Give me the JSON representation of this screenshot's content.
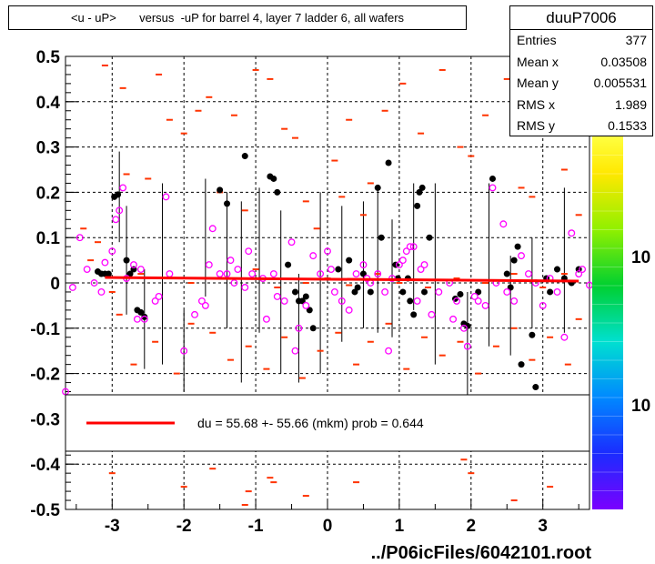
{
  "title": "<u - uP>       versus  -uP for barrel 4, layer 7 ladder 6, all wafers",
  "stats": {
    "name": "duuP7006",
    "rows": [
      {
        "label": "Entries",
        "value": "377"
      },
      {
        "label": "Mean x",
        "value": "0.03508"
      },
      {
        "label": "Mean y",
        "value": "0.005531"
      },
      {
        "label": "RMS x",
        "value": "1.989"
      },
      {
        "label": "RMS y",
        "value": "0.1533"
      }
    ]
  },
  "legend": {
    "text": "du =   55.68 +- 55.66 (mkm) prob = 0.644",
    "line_color": "#ff0000"
  },
  "footer": "../P06icFiles/6042101.root",
  "colorbar_labels": [
    "10",
    "10"
  ],
  "chart_data": {
    "type": "scatter",
    "xlim": [
      -3.65,
      3.65
    ],
    "ylim": [
      -0.5,
      0.5
    ],
    "x_ticks": [
      -3,
      -2,
      -1,
      0,
      1,
      2,
      3
    ],
    "y_ticks": [
      0.5,
      0.4,
      0.3,
      0.2,
      0.1,
      0,
      -0.1,
      -0.2,
      -0.3,
      -0.4,
      -0.5
    ],
    "grid": true,
    "fit_line": {
      "x": [
        -3.1,
        3.5
      ],
      "y": [
        0.012,
        0.004
      ],
      "color": "#ff0000"
    },
    "black_points": [
      [
        -3.2,
        0.025
      ],
      [
        -3.15,
        0.02
      ],
      [
        -3.1,
        0.02
      ],
      [
        -3.05,
        0.02
      ],
      [
        -2.97,
        0.19
      ],
      [
        -2.92,
        0.195
      ],
      [
        -2.8,
        0.05
      ],
      [
        -2.75,
        0.02
      ],
      [
        -2.7,
        0.03
      ],
      [
        -2.65,
        -0.06
      ],
      [
        -2.6,
        -0.065
      ],
      [
        -2.55,
        -0.075
      ],
      [
        -1.5,
        0.205
      ],
      [
        -1.4,
        0.175
      ],
      [
        -1.15,
        0.28
      ],
      [
        -0.8,
        0.235
      ],
      [
        -0.75,
        0.23
      ],
      [
        -0.7,
        0.2
      ],
      [
        -0.55,
        0.04
      ],
      [
        -0.45,
        -0.02
      ],
      [
        -0.4,
        -0.04
      ],
      [
        -0.35,
        -0.04
      ],
      [
        -0.3,
        -0.03
      ],
      [
        -0.25,
        -0.06
      ],
      [
        -0.2,
        -0.1
      ],
      [
        0.15,
        0.03
      ],
      [
        0.3,
        0.05
      ],
      [
        0.38,
        -0.02
      ],
      [
        0.42,
        -0.01
      ],
      [
        0.5,
        0.02
      ],
      [
        0.6,
        -0.02
      ],
      [
        0.7,
        0.21
      ],
      [
        0.75,
        0.1
      ],
      [
        0.85,
        0.265
      ],
      [
        0.95,
        0.04
      ],
      [
        0.98,
        0.01
      ],
      [
        1.05,
        -0.02
      ],
      [
        1.12,
        0.01
      ],
      [
        1.15,
        -0.04
      ],
      [
        1.2,
        -0.07
      ],
      [
        1.28,
        0.2
      ],
      [
        1.32,
        0.21
      ],
      [
        1.25,
        0.17
      ],
      [
        1.35,
        -0.02
      ],
      [
        1.42,
        0.1
      ],
      [
        1.78,
        -0.035
      ],
      [
        1.85,
        -0.025
      ],
      [
        1.9,
        -0.09
      ],
      [
        1.95,
        -0.095
      ],
      [
        2.1,
        -0.02
      ],
      [
        2.3,
        0.23
      ],
      [
        2.5,
        0.02
      ],
      [
        2.55,
        -0.01
      ],
      [
        2.6,
        0.05
      ],
      [
        2.65,
        0.08
      ],
      [
        2.7,
        -0.18
      ],
      [
        2.85,
        -0.115
      ],
      [
        2.9,
        -0.23
      ],
      [
        3.05,
        0.01
      ],
      [
        3.1,
        -0.02
      ],
      [
        3.2,
        0.03
      ],
      [
        3.3,
        0.01
      ],
      [
        3.4,
        0.0
      ],
      [
        3.5,
        0.03
      ]
    ],
    "magenta_points": [
      [
        -3.65,
        -0.24
      ],
      [
        -3.55,
        -0.01
      ],
      [
        -3.45,
        0.1
      ],
      [
        -3.35,
        0.03
      ],
      [
        -3.25,
        0.0
      ],
      [
        -3.15,
        -0.02
      ],
      [
        -3.1,
        0.045
      ],
      [
        -3.0,
        0.07
      ],
      [
        -2.95,
        0.14
      ],
      [
        -2.9,
        0.16
      ],
      [
        -2.85,
        0.21
      ],
      [
        -2.8,
        0.01
      ],
      [
        -2.7,
        0.04
      ],
      [
        -2.65,
        -0.08
      ],
      [
        -2.6,
        0.03
      ],
      [
        -2.55,
        -0.08
      ],
      [
        -2.4,
        -0.04
      ],
      [
        -2.35,
        -0.03
      ],
      [
        -2.25,
        0.19
      ],
      [
        -2.2,
        0.02
      ],
      [
        -2.0,
        -0.15
      ],
      [
        -1.85,
        -0.07
      ],
      [
        -1.75,
        -0.04
      ],
      [
        -1.7,
        -0.05
      ],
      [
        -1.65,
        0.04
      ],
      [
        -1.6,
        0.12
      ],
      [
        -1.5,
        0.02
      ],
      [
        -1.4,
        0.02
      ],
      [
        -1.35,
        0.05
      ],
      [
        -1.3,
        0.0
      ],
      [
        -1.25,
        0.03
      ],
      [
        -1.15,
        -0.01
      ],
      [
        -1.1,
        0.07
      ],
      [
        -1.05,
        0.02
      ],
      [
        -0.9,
        0.01
      ],
      [
        -0.85,
        -0.08
      ],
      [
        -0.75,
        0.02
      ],
      [
        -0.7,
        -0.03
      ],
      [
        -0.6,
        -0.04
      ],
      [
        -0.5,
        0.09
      ],
      [
        -0.45,
        -0.15
      ],
      [
        -0.4,
        -0.1
      ],
      [
        -0.3,
        -0.05
      ],
      [
        -0.2,
        0.06
      ],
      [
        -0.1,
        0.02
      ],
      [
        0.0,
        0.07
      ],
      [
        0.05,
        0.03
      ],
      [
        0.1,
        -0.02
      ],
      [
        0.2,
        -0.04
      ],
      [
        0.3,
        -0.06
      ],
      [
        0.4,
        0.02
      ],
      [
        0.5,
        0.04
      ],
      [
        0.55,
        0.01
      ],
      [
        0.6,
        0.0
      ],
      [
        0.7,
        0.02
      ],
      [
        0.8,
        -0.02
      ],
      [
        0.85,
        -0.15
      ],
      [
        0.9,
        0.01
      ],
      [
        1.0,
        0.04
      ],
      [
        1.05,
        0.05
      ],
      [
        1.1,
        0.07
      ],
      [
        1.15,
        0.08
      ],
      [
        1.2,
        0.08
      ],
      [
        1.25,
        -0.04
      ],
      [
        1.3,
        0.03
      ],
      [
        1.35,
        0.04
      ],
      [
        1.45,
        -0.07
      ],
      [
        1.55,
        -0.02
      ],
      [
        1.7,
        0.0
      ],
      [
        1.75,
        -0.08
      ],
      [
        1.8,
        -0.04
      ],
      [
        1.9,
        -0.1
      ],
      [
        1.95,
        -0.14
      ],
      [
        2.05,
        -0.03
      ],
      [
        2.1,
        -0.04
      ],
      [
        2.2,
        -0.05
      ],
      [
        2.3,
        0.21
      ],
      [
        2.35,
        0.0
      ],
      [
        2.45,
        0.13
      ],
      [
        2.5,
        -0.02
      ],
      [
        2.6,
        -0.04
      ],
      [
        2.7,
        0.06
      ],
      [
        2.8,
        0.02
      ],
      [
        2.9,
        0.0
      ],
      [
        3.0,
        -0.05
      ],
      [
        3.1,
        0.01
      ],
      [
        3.2,
        -0.02
      ],
      [
        3.3,
        -0.12
      ],
      [
        3.4,
        0.11
      ],
      [
        3.5,
        0.02
      ],
      [
        3.55,
        0.03
      ],
      [
        3.65,
        -0.005
      ]
    ],
    "orange_marks": [
      [
        -3.1,
        0.48
      ],
      [
        -2.85,
        0.43
      ],
      [
        -2.8,
        0.24
      ],
      [
        -2.5,
        0.23
      ],
      [
        -2.35,
        0.46
      ],
      [
        -2.2,
        0.36
      ],
      [
        -2.0,
        0.33
      ],
      [
        -1.8,
        0.38
      ],
      [
        -1.65,
        0.41
      ],
      [
        -1.5,
        0.2
      ],
      [
        -1.3,
        0.37
      ],
      [
        -1.15,
        0.16
      ],
      [
        -1.0,
        0.47
      ],
      [
        -0.8,
        0.45
      ],
      [
        -0.6,
        0.34
      ],
      [
        -0.45,
        0.32
      ],
      [
        -0.3,
        0.18
      ],
      [
        -0.15,
        0.12
      ],
      [
        0.1,
        0.27
      ],
      [
        0.2,
        0.19
      ],
      [
        0.3,
        0.36
      ],
      [
        0.5,
        0.15
      ],
      [
        0.6,
        0.22
      ],
      [
        0.8,
        0.38
      ],
      [
        1.05,
        0.44
      ],
      [
        1.3,
        0.33
      ],
      [
        1.6,
        0.47
      ],
      [
        1.85,
        0.3
      ],
      [
        2.0,
        0.28
      ],
      [
        2.2,
        0.37
      ],
      [
        2.5,
        0.45
      ],
      [
        2.7,
        0.21
      ],
      [
        2.85,
        0.19
      ],
      [
        3.05,
        0.35
      ],
      [
        3.3,
        0.25
      ],
      [
        3.5,
        0.15
      ],
      [
        -3.4,
        0.12
      ],
      [
        -3.2,
        0.09
      ],
      [
        -2.9,
        -0.07
      ],
      [
        -2.7,
        -0.18
      ],
      [
        -2.4,
        -0.13
      ],
      [
        -2.1,
        -0.2
      ],
      [
        -1.9,
        -0.09
      ],
      [
        -1.6,
        -0.11
      ],
      [
        -1.35,
        -0.17
      ],
      [
        -1.1,
        -0.14
      ],
      [
        -0.85,
        -0.19
      ],
      [
        -0.6,
        -0.12
      ],
      [
        -0.35,
        -0.21
      ],
      [
        -0.1,
        -0.15
      ],
      [
        0.15,
        -0.11
      ],
      [
        0.4,
        -0.18
      ],
      [
        0.6,
        -0.13
      ],
      [
        0.85,
        -0.09
      ],
      [
        1.1,
        -0.19
      ],
      [
        1.35,
        -0.12
      ],
      [
        1.6,
        -0.16
      ],
      [
        1.85,
        -0.13
      ],
      [
        2.1,
        -0.2
      ],
      [
        2.35,
        -0.14
      ],
      [
        2.6,
        -0.1
      ],
      [
        2.85,
        -0.17
      ],
      [
        3.1,
        -0.12
      ],
      [
        3.35,
        -0.18
      ],
      [
        3.5,
        -0.08
      ],
      [
        -3.3,
        0.05
      ],
      [
        -3.0,
        -0.02
      ],
      [
        -2.6,
        0.02
      ],
      [
        -2.2,
        0.01
      ],
      [
        -1.9,
        0.0
      ],
      [
        -1.4,
        0.01
      ],
      [
        -1.0,
        0.03
      ],
      [
        -0.7,
        -0.01
      ],
      [
        -0.3,
        0.0
      ],
      [
        0.0,
        0.01
      ],
      [
        0.3,
        -0.005
      ],
      [
        0.7,
        0.02
      ],
      [
        1.0,
        0.0
      ],
      [
        1.4,
        -0.01
      ],
      [
        1.8,
        0.01
      ],
      [
        2.2,
        0.0
      ],
      [
        2.6,
        0.02
      ],
      [
        3.0,
        -0.01
      ],
      [
        3.3,
        0.02
      ],
      [
        -3.0,
        -0.42
      ],
      [
        -2.0,
        -0.45
      ],
      [
        -1.6,
        -0.41
      ],
      [
        -1.1,
        -0.46
      ],
      [
        -0.8,
        -0.43
      ],
      [
        -0.3,
        -0.47
      ],
      [
        0.4,
        -0.44
      ],
      [
        1.9,
        -0.39
      ],
      [
        2.0,
        -0.42
      ],
      [
        2.6,
        -0.48
      ],
      [
        3.1,
        -0.45
      ],
      [
        -1.15,
        -0.49
      ],
      [
        -0.75,
        -0.44
      ]
    ],
    "error_bars": [
      [
        -2.9,
        0.19,
        0.1
      ],
      [
        -2.8,
        0.05,
        0.12
      ],
      [
        -2.55,
        -0.08,
        0.11
      ],
      [
        -2.3,
        0.02,
        0.2
      ],
      [
        -2.0,
        -0.15,
        0.09
      ],
      [
        -1.7,
        0.1,
        0.13
      ],
      [
        -1.4,
        0.05,
        0.15
      ],
      [
        -1.2,
        -0.02,
        0.2
      ],
      [
        -0.95,
        0.05,
        0.16
      ],
      [
        -0.65,
        -0.02,
        0.18
      ],
      [
        -0.4,
        -0.1,
        0.12
      ],
      [
        -0.1,
        0.0,
        0.2
      ],
      [
        0.2,
        0.02,
        0.15
      ],
      [
        0.5,
        0.04,
        0.14
      ],
      [
        0.7,
        0.05,
        0.16
      ],
      [
        0.9,
        0.01,
        0.13
      ],
      [
        1.2,
        0.08,
        0.14
      ],
      [
        1.5,
        0.02,
        0.2
      ],
      [
        1.95,
        -0.14,
        0.12
      ],
      [
        2.25,
        0.04,
        0.18
      ],
      [
        2.55,
        -0.05,
        0.11
      ],
      [
        2.85,
        0.0,
        0.1
      ],
      [
        3.3,
        0.05,
        0.16
      ]
    ]
  }
}
